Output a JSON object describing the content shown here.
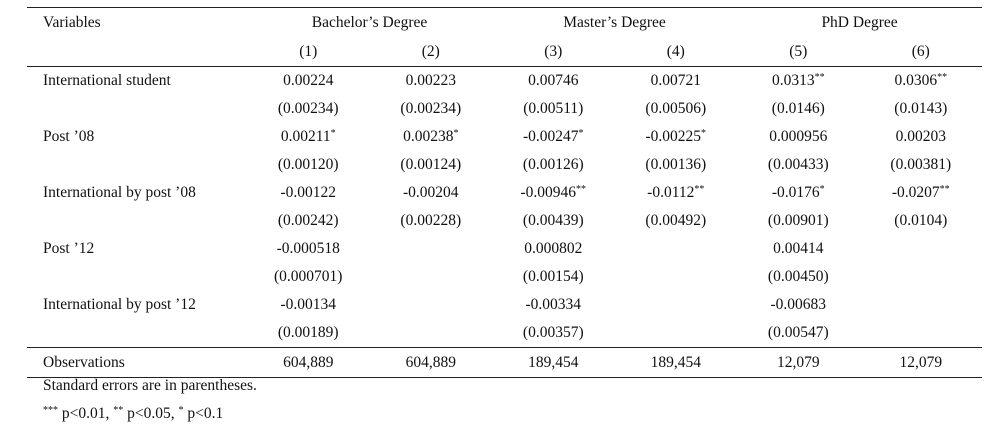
{
  "table": {
    "variables_header": "Variables",
    "groups": [
      "Bachelor’s Degree",
      "Master’s Degree",
      "PhD Degree"
    ],
    "columns": [
      "(1)",
      "(2)",
      "(3)",
      "(4)",
      "(5)",
      "(6)"
    ],
    "rows": [
      {
        "label": "International student",
        "coef": [
          {
            "v": "0.00224",
            "s": ""
          },
          {
            "v": "0.00223",
            "s": ""
          },
          {
            "v": "0.00746",
            "s": ""
          },
          {
            "v": "0.00721",
            "s": ""
          },
          {
            "v": "0.0313",
            "s": "**"
          },
          {
            "v": "0.0306",
            "s": "**"
          }
        ],
        "se": [
          "(0.00234)",
          "(0.00234)",
          "(0.00511)",
          "(0.00506)",
          "(0.0146)",
          "(0.0143)"
        ]
      },
      {
        "label": "Post ’08",
        "coef": [
          {
            "v": "0.00211",
            "s": "*"
          },
          {
            "v": "0.00238",
            "s": "*"
          },
          {
            "v": "-0.00247",
            "s": "*"
          },
          {
            "v": "-0.00225",
            "s": "*"
          },
          {
            "v": "0.000956",
            "s": ""
          },
          {
            "v": "0.00203",
            "s": ""
          }
        ],
        "se": [
          "(0.00120)",
          "(0.00124)",
          "(0.00126)",
          "(0.00136)",
          "(0.00433)",
          "(0.00381)"
        ]
      },
      {
        "label": "International by post ’08",
        "coef": [
          {
            "v": "-0.00122",
            "s": ""
          },
          {
            "v": "-0.00204",
            "s": ""
          },
          {
            "v": "-0.00946",
            "s": "**"
          },
          {
            "v": "-0.0112",
            "s": "**"
          },
          {
            "v": "-0.0176",
            "s": "*"
          },
          {
            "v": "-0.0207",
            "s": "**"
          }
        ],
        "se": [
          "(0.00242)",
          "(0.00228)",
          "(0.00439)",
          "(0.00492)",
          "(0.00901)",
          "(0.0104)"
        ]
      },
      {
        "label": "Post ’12",
        "coef": [
          {
            "v": "-0.000518",
            "s": ""
          },
          {
            "v": "",
            "s": ""
          },
          {
            "v": "0.000802",
            "s": ""
          },
          {
            "v": "",
            "s": ""
          },
          {
            "v": "0.00414",
            "s": ""
          },
          {
            "v": "",
            "s": ""
          }
        ],
        "se": [
          "(0.000701)",
          "",
          "(0.00154)",
          "",
          "(0.00450)",
          ""
        ]
      },
      {
        "label": "International by post ’12",
        "coef": [
          {
            "v": "-0.00134",
            "s": ""
          },
          {
            "v": "",
            "s": ""
          },
          {
            "v": "-0.00334",
            "s": ""
          },
          {
            "v": "",
            "s": ""
          },
          {
            "v": "-0.00683",
            "s": ""
          },
          {
            "v": "",
            "s": ""
          }
        ],
        "se": [
          "(0.00189)",
          "",
          "(0.00357)",
          "",
          "(0.00547)",
          ""
        ]
      }
    ],
    "observations_label": "Observations",
    "observations": [
      "604,889",
      "604,889",
      "189,454",
      "189,454",
      "12,079",
      "12,079"
    ]
  },
  "notes": {
    "line1": "Standard errors are in parentheses.",
    "line2_stars3": "***",
    "line2_p3": " p<0.01, ",
    "line2_stars2": "**",
    "line2_p2": " p<0.05, ",
    "line2_stars1": "*",
    "line2_p1": " p<0.1"
  }
}
